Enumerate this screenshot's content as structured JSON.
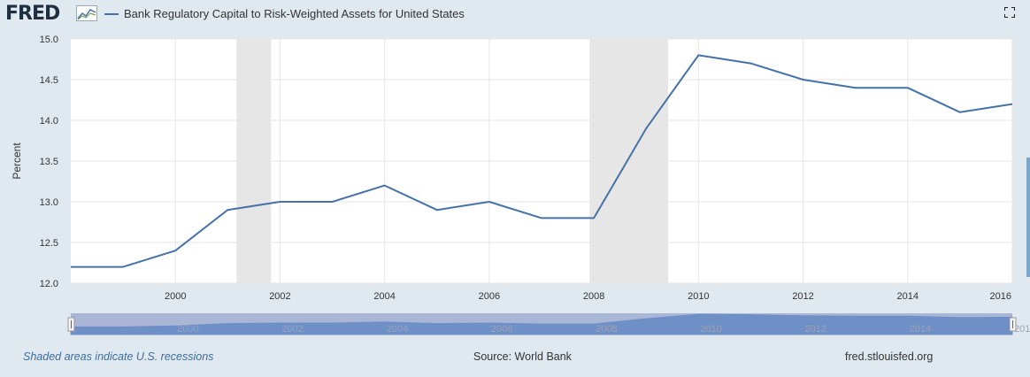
{
  "header": {
    "logo_text": "FRED",
    "legend_label": "Bank Regulatory Capital to Risk-Weighted Assets for United States"
  },
  "colors": {
    "series": "#4572a7",
    "recession": "#e6e6e6",
    "background": "#e1e9f0",
    "navigator_band": "#aab6d6",
    "navigator_area": "#6f8fc7"
  },
  "chart_data": {
    "type": "line",
    "title": "",
    "xlabel": "",
    "ylabel": "Percent",
    "xlim": [
      1998,
      2016
    ],
    "ylim": [
      12.0,
      15.0
    ],
    "y_ticks": [
      "12.0",
      "12.5",
      "13.0",
      "13.5",
      "14.0",
      "14.5",
      "15.0"
    ],
    "x_ticks": [
      "2000",
      "2002",
      "2004",
      "2006",
      "2008",
      "2010",
      "2012",
      "2014",
      "2016"
    ],
    "grid": true,
    "recessions": [
      [
        2001.17,
        2001.83
      ],
      [
        2007.92,
        2009.42
      ]
    ],
    "series": [
      {
        "name": "Bank Regulatory Capital to Risk-Weighted Assets for United States",
        "x": [
          1998,
          1999,
          2000,
          2001,
          2002,
          2003,
          2004,
          2005,
          2006,
          2007,
          2008,
          2009,
          2010,
          2011,
          2012,
          2013,
          2014,
          2015,
          2016
        ],
        "y": [
          12.2,
          12.2,
          12.4,
          12.9,
          13.0,
          13.0,
          13.2,
          12.9,
          13.0,
          12.8,
          12.8,
          13.9,
          14.8,
          14.7,
          14.5,
          14.4,
          14.4,
          14.1,
          14.2
        ]
      }
    ],
    "navigator_ticks": [
      "2000",
      "2002",
      "2004",
      "2006",
      "2008",
      "2010",
      "2012",
      "2014",
      "201"
    ]
  },
  "footer": {
    "note": "Shaded areas indicate U.S. recessions",
    "source": "Source: World Bank",
    "site": "fred.stlouisfed.org"
  }
}
